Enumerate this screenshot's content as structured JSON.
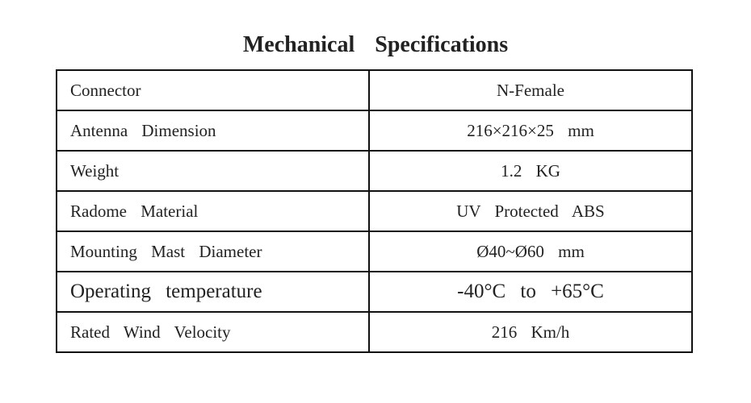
{
  "header": {
    "title": "Mechanical Specifications"
  },
  "table": {
    "rows": [
      [
        "Connector",
        "N-Female"
      ],
      [
        "Antenna Dimension",
        "216×216×25 mm"
      ],
      [
        "Weight",
        "1.2 KG"
      ],
      [
        "Radome Material",
        "UV Protected ABS"
      ],
      [
        "Mounting Mast Diameter",
        "Ø40~Ø60 mm"
      ],
      [
        "Operating temperature",
        "-40°C to +65°C"
      ],
      [
        "Rated Wind Velocity",
        "216 Km/h"
      ]
    ]
  }
}
